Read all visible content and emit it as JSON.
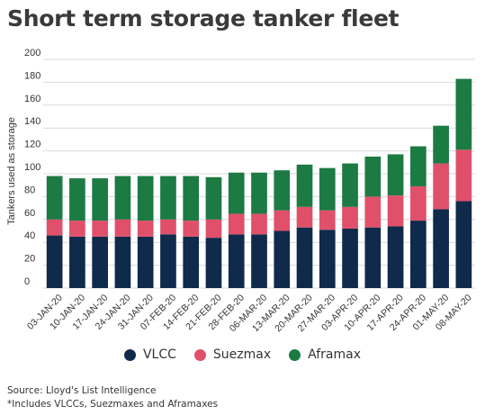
{
  "title": "Short term storage tanker fleet",
  "source": "Source: Lloyd's List Intelligence",
  "note": "*Includes VLCCs, Suezmaxes and Aframaxes",
  "chart_data": {
    "type": "bar",
    "stacked": true,
    "title": "Short term storage tanker fleet",
    "xlabel": "",
    "ylabel": "Tankers used as storage",
    "ylim": [
      0,
      200
    ],
    "yticks": [
      0,
      20,
      40,
      60,
      80,
      100,
      120,
      140,
      160,
      180,
      200
    ],
    "grid": true,
    "legend_position": "bottom",
    "categories": [
      "03-JAN-20",
      "10-JAN-20",
      "17-JAN-20",
      "24-JAN-20",
      "31-JAN-20",
      "07-FEB-20",
      "14-FEB-20",
      "21-FEB-20",
      "28-FEB-20",
      "06-MAR-20",
      "13-MAR-20",
      "20-MAR-20",
      "27-MAR-20",
      "03-APR-20",
      "10-APR-20",
      "17-APR-20",
      "24-APR-20",
      "01-MAY-20",
      "08-MAY-20"
    ],
    "series": [
      {
        "name": "VLCC",
        "color": "#0f2a4a",
        "values": [
          46,
          45,
          45,
          45,
          45,
          47,
          45,
          44,
          47,
          47,
          50,
          53,
          51,
          52,
          53,
          54,
          59,
          69,
          76
        ]
      },
      {
        "name": "Suezmax",
        "color": "#e0506a",
        "values": [
          14,
          14,
          14,
          15,
          14,
          13,
          14,
          16,
          18,
          18,
          18,
          18,
          17,
          19,
          27,
          27,
          30,
          40,
          45
        ]
      },
      {
        "name": "Aframax",
        "color": "#1c7a43",
        "values": [
          38,
          37,
          37,
          38,
          39,
          38,
          39,
          37,
          36,
          36,
          35,
          37,
          37,
          38,
          35,
          36,
          35,
          33,
          62
        ]
      }
    ]
  }
}
